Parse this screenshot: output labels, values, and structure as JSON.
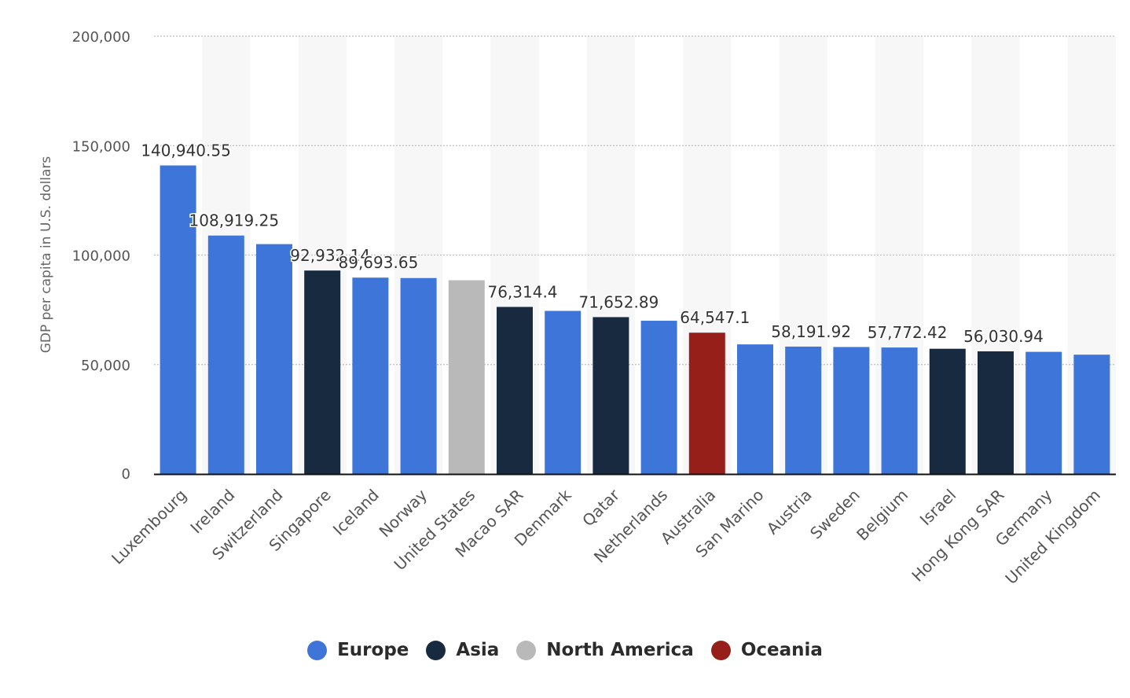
{
  "chart_data": {
    "type": "bar",
    "title": "",
    "xlabel": "",
    "ylabel": "GDP per capita in U.S. dollars",
    "ylim": [
      0,
      200000
    ],
    "yticks": [
      0,
      50000,
      100000,
      150000,
      200000
    ],
    "ytick_labels": [
      "0",
      "50,000",
      "100,000",
      "150,000",
      "200,000"
    ],
    "grid": true,
    "legend_position": "bottom-center",
    "categories": [
      "Luxembourg",
      "Ireland",
      "Switzerland",
      "Singapore",
      "Iceland",
      "Norway",
      "United States",
      "Macao SAR",
      "Denmark",
      "Qatar",
      "Netherlands",
      "Australia",
      "San Marino",
      "Austria",
      "Sweden",
      "Belgium",
      "Israel",
      "Hong Kong SAR",
      "Germany",
      "United Kingdom"
    ],
    "values": [
      140940.55,
      108919.25,
      105000,
      92932.14,
      89693.65,
      89500,
      88500,
      76314.4,
      74500,
      71652.89,
      70000,
      64547.1,
      59200,
      58191.92,
      58000,
      57772.42,
      57200,
      56030.94,
      55800,
      54500
    ],
    "data_labels": [
      "140,940.55",
      "108,919.25",
      "",
      "92,932.14",
      "89,693.65",
      "",
      "",
      "76,314.4",
      "",
      "71,652.89",
      "",
      "64,547.1",
      "",
      "58,191.92",
      "",
      "57,772.42",
      "",
      "56,030.94",
      "",
      ""
    ],
    "regions": [
      "Europe",
      "Europe",
      "Europe",
      "Asia",
      "Europe",
      "Europe",
      "North America",
      "Asia",
      "Europe",
      "Asia",
      "Europe",
      "Oceania",
      "Europe",
      "Europe",
      "Europe",
      "Europe",
      "Asia",
      "Asia",
      "Europe",
      "Europe"
    ],
    "legend": [
      {
        "name": "Europe",
        "color": "#3d75d9"
      },
      {
        "name": "Asia",
        "color": "#172a3f"
      },
      {
        "name": "North America",
        "color": "#b9b9b9"
      },
      {
        "name": "Oceania",
        "color": "#961f1a"
      }
    ]
  }
}
